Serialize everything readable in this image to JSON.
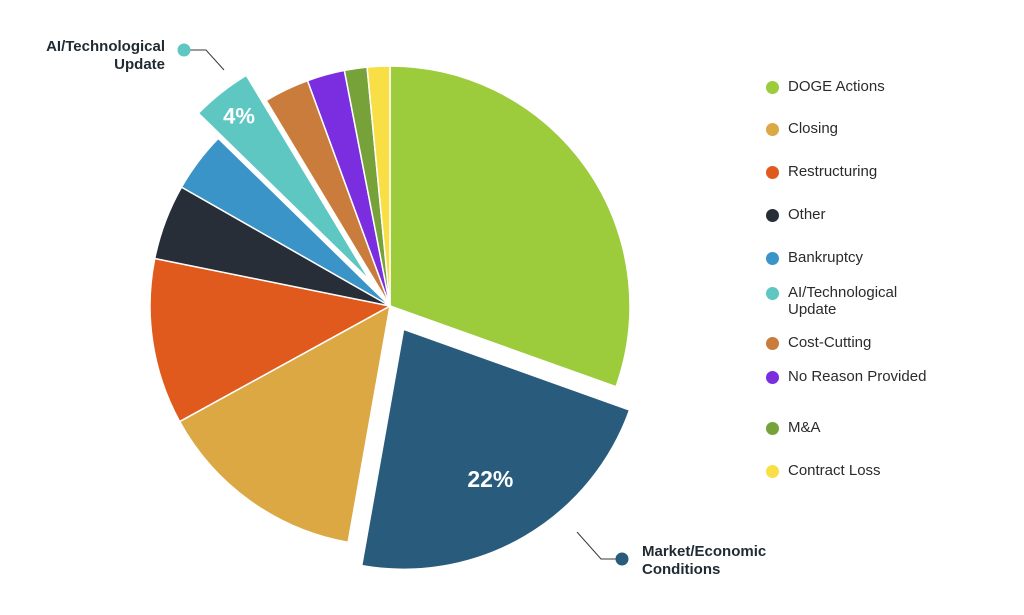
{
  "chart_data": {
    "type": "pie",
    "title": "",
    "legend_position": "right",
    "slices": [
      {
        "label": "DOGE Actions",
        "value": 30,
        "color": "#9ccb3c"
      },
      {
        "label": "Market/Economic Conditions",
        "value": 22,
        "color": "#295c7c",
        "exploded": true,
        "callout": "Market/Economic Conditions",
        "data_label": "22%"
      },
      {
        "label": "Closing",
        "value": 14,
        "color": "#dba843"
      },
      {
        "label": "Restructuring",
        "value": 11,
        "color": "#e05a1e"
      },
      {
        "label": "Other",
        "value": 5,
        "color": "#272e38"
      },
      {
        "label": "Bankruptcy",
        "value": 4,
        "color": "#3b94c7"
      },
      {
        "label": "AI/Technological Update",
        "value": 4,
        "color": "#5ec7c2",
        "exploded": true,
        "callout": "AI/Technological Update",
        "data_label": "4%"
      },
      {
        "label": "Cost-Cutting",
        "value": 3,
        "color": "#c97c3b"
      },
      {
        "label": "No Reason Provided",
        "value": 2.5,
        "color": "#7a2ee0"
      },
      {
        "label": "M&A",
        "value": 1.5,
        "color": "#77a23a"
      },
      {
        "label": "Contract Loss",
        "value": 1.5,
        "color": "#f7df45"
      }
    ],
    "legend": [
      {
        "label": "DOGE Actions",
        "color": "#9ccb3c"
      },
      {
        "label": "Closing",
        "color": "#dba843"
      },
      {
        "label": "Restructuring",
        "color": "#e05a1e"
      },
      {
        "label": "Other",
        "color": "#272e38"
      },
      {
        "label": "Bankruptcy",
        "color": "#3b94c7"
      },
      {
        "label": "AI/Technological Update",
        "color": "#5ec7c2"
      },
      {
        "label": "Cost-Cutting",
        "color": "#c97c3b"
      },
      {
        "label": "No Reason Provided",
        "color": "#7a2ee0"
      },
      {
        "label": "M&A",
        "color": "#77a23a"
      },
      {
        "label": "Contract Loss",
        "color": "#f7df45"
      }
    ]
  }
}
